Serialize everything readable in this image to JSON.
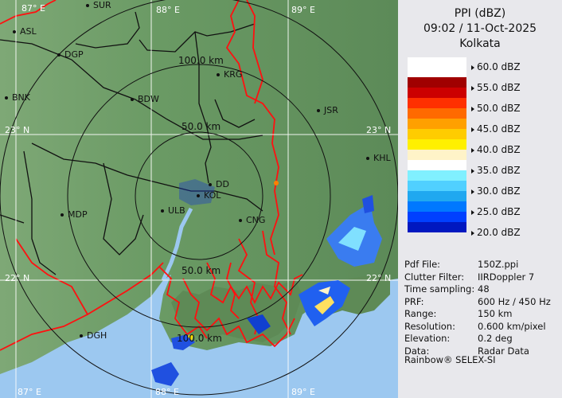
{
  "header": {
    "product": "PPI (dBZ)",
    "datetime": "09:02 / 11-Oct-2025",
    "station": "Kolkata"
  },
  "legend": {
    "labels": [
      "60.0 dBZ",
      "55.0 dBZ",
      "50.0 dBZ",
      "45.0 dBZ",
      "40.0 dBZ",
      "35.0 dBZ",
      "30.0 dBZ",
      "25.0 dBZ",
      "20.0 dBZ"
    ],
    "colors": [
      "#a00000",
      "#cc0000",
      "#ff3000",
      "#ff6a00",
      "#ffa000",
      "#ffcc00",
      "#fff000",
      "#fff3c8",
      "#ffffff",
      "#80f0ff",
      "#50d0ff",
      "#20a8f0",
      "#0078ff",
      "#0040ff",
      "#0018c0",
      "#000c90"
    ]
  },
  "info": [
    {
      "key": "Pdf File:",
      "value": "150Z.ppi"
    },
    {
      "key": "Clutter Filter:",
      "value": "IIRDoppler 7"
    },
    {
      "key": "Time sampling:",
      "value": "48"
    },
    {
      "key": "PRF:",
      "value": "600 Hz / 450 Hz"
    },
    {
      "key": "Range:",
      "value": "150 km"
    },
    {
      "key": "Resolution:",
      "value": "0.600 km/pixel"
    },
    {
      "key": "Elevation:",
      "value": "0.2 deg"
    },
    {
      "key": "Data:",
      "value": "Radar Data"
    }
  ],
  "credit": "Rainbow® SELEX-SI",
  "map": {
    "longitudes": [
      "87° E",
      "88° E",
      "89° E"
    ],
    "latitudes": [
      "23° N",
      "22° N"
    ],
    "rings": [
      "50.0 km",
      "100.0 km"
    ],
    "cities": [
      "SUR",
      "ASL",
      "DGP",
      "BNK",
      "BDW",
      "KRG",
      "JSR",
      "KHL",
      "MDP",
      "DD",
      "KOL",
      "ULB",
      "CNG",
      "DGH"
    ],
    "colors": {
      "land": "#5e8f5a",
      "sea": "#9cc8f0",
      "boundary": "#ff1010"
    }
  }
}
